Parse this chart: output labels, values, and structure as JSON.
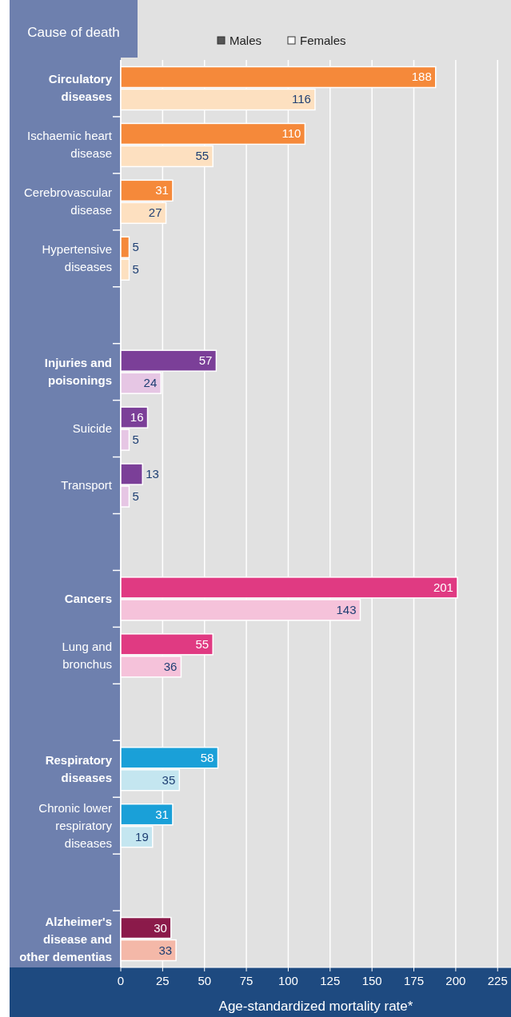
{
  "chart_data": {
    "type": "bar",
    "orientation": "horizontal",
    "ylabel": "Cause of death",
    "xlabel": "Age-standardized mortality rate*",
    "categories": [
      "Circulatory diseases",
      "Ischaemic heart disease",
      "Cerebrovascular disease",
      "Hypertensive diseases",
      null,
      "Injuries and poisonings",
      "Suicide",
      "Transport",
      null,
      "Cancers",
      "Lung and bronchus",
      null,
      "Respiratory diseases",
      "Chronic lower respiratory diseases",
      null,
      "Alzheimer's disease and other dementias"
    ],
    "series": [
      {
        "name": "Males",
        "color": "#555555",
        "colors": [
          "#f5893a",
          "#f5893a",
          "#f5893a",
          "#f5893a",
          null,
          "#7b3f98",
          "#7b3f98",
          "#7b3f98",
          null,
          "#e03a82",
          "#e03a82",
          null,
          "#1aa0d8",
          "#1aa0d8",
          null,
          "#8b1a4a"
        ],
        "values": [
          188,
          110,
          31,
          5,
          null,
          57,
          16,
          13,
          null,
          201,
          55,
          null,
          58,
          31,
          null,
          30
        ]
      },
      {
        "name": "Females",
        "color": "#ffffff",
        "colors": [
          "#fde0c0",
          "#fde0c0",
          "#fde0c0",
          "#fde0c0",
          null,
          "#e6c6e4",
          "#e6c6e4",
          "#e6c6e4",
          null,
          "#f5c2da",
          "#f5c2da",
          null,
          "#c4e6f0",
          "#c4e6f0",
          null,
          "#f4b8a8"
        ],
        "values": [
          116,
          55,
          27,
          5,
          null,
          24,
          5,
          5,
          null,
          143,
          36,
          null,
          35,
          19,
          null,
          33
        ]
      }
    ],
    "xlim": [
      0,
      233
    ],
    "xticks": [
      0,
      25,
      50,
      75,
      100,
      125,
      150,
      175,
      200,
      225
    ],
    "grid": "x",
    "legend": "top",
    "data_labels": true
  }
}
